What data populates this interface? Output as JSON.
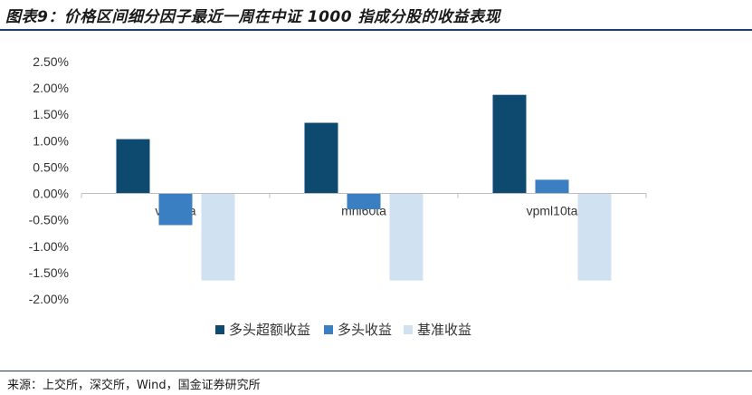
{
  "title": "图表9：价格区间细分因子最近一周在中证 1000 指成分股的收益表现",
  "source": "来源：上交所，深交所，Wind，国金证券研究所",
  "chart_data": {
    "type": "bar",
    "categories": [
      "vhl60ta",
      "mhl60ta",
      "vpml10ta"
    ],
    "series": [
      {
        "name": "多头超额收益",
        "color": "#0e4a6f",
        "values": [
          1.03,
          1.34,
          1.87
        ]
      },
      {
        "name": "多头收益",
        "color": "#3a7fc1",
        "values": [
          -0.6,
          -0.3,
          0.26
        ]
      },
      {
        "name": "基准收益",
        "color": "#d0e2f2",
        "values": [
          -1.65,
          -1.65,
          -1.65
        ]
      }
    ],
    "yticks": [
      "2.50%",
      "2.00%",
      "1.50%",
      "1.00%",
      "0.50%",
      "0.00%",
      "-0.50%",
      "-1.00%",
      "-1.50%",
      "-2.00%"
    ],
    "ylim": [
      -2.0,
      2.5
    ],
    "grid": false,
    "legend": "bottom"
  }
}
